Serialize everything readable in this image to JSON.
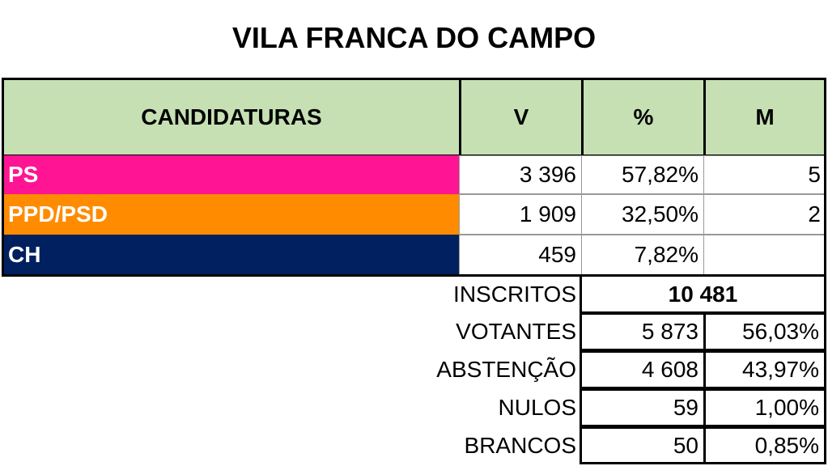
{
  "title": "VILA FRANCA DO CAMPO",
  "header": {
    "candidaturas": "CANDIDATURAS",
    "v": "V",
    "pct": "%",
    "m": "M"
  },
  "parties": [
    {
      "name": "PS",
      "votes": "3 396",
      "pct": "57,82%",
      "mandates": "5",
      "color": "#ff1493"
    },
    {
      "name": "PPD/PSD",
      "votes": "1 909",
      "pct": "32,50%",
      "mandates": "2",
      "color": "#ff8c00"
    },
    {
      "name": "CH",
      "votes": "459",
      "pct": "7,82%",
      "mandates": "",
      "color": "#002060"
    }
  ],
  "summary": {
    "inscritos": {
      "label": "INSCRITOS",
      "value": "10 481"
    },
    "rows": [
      {
        "label": "VOTANTES",
        "value": "5 873",
        "pct": "56,03%"
      },
      {
        "label": "ABSTENÇÃO",
        "value": "4 608",
        "pct": "43,97%"
      },
      {
        "label": "NULOS",
        "value": "59",
        "pct": "1,00%"
      },
      {
        "label": "BRANCOS",
        "value": "50",
        "pct": "0,85%"
      }
    ]
  }
}
